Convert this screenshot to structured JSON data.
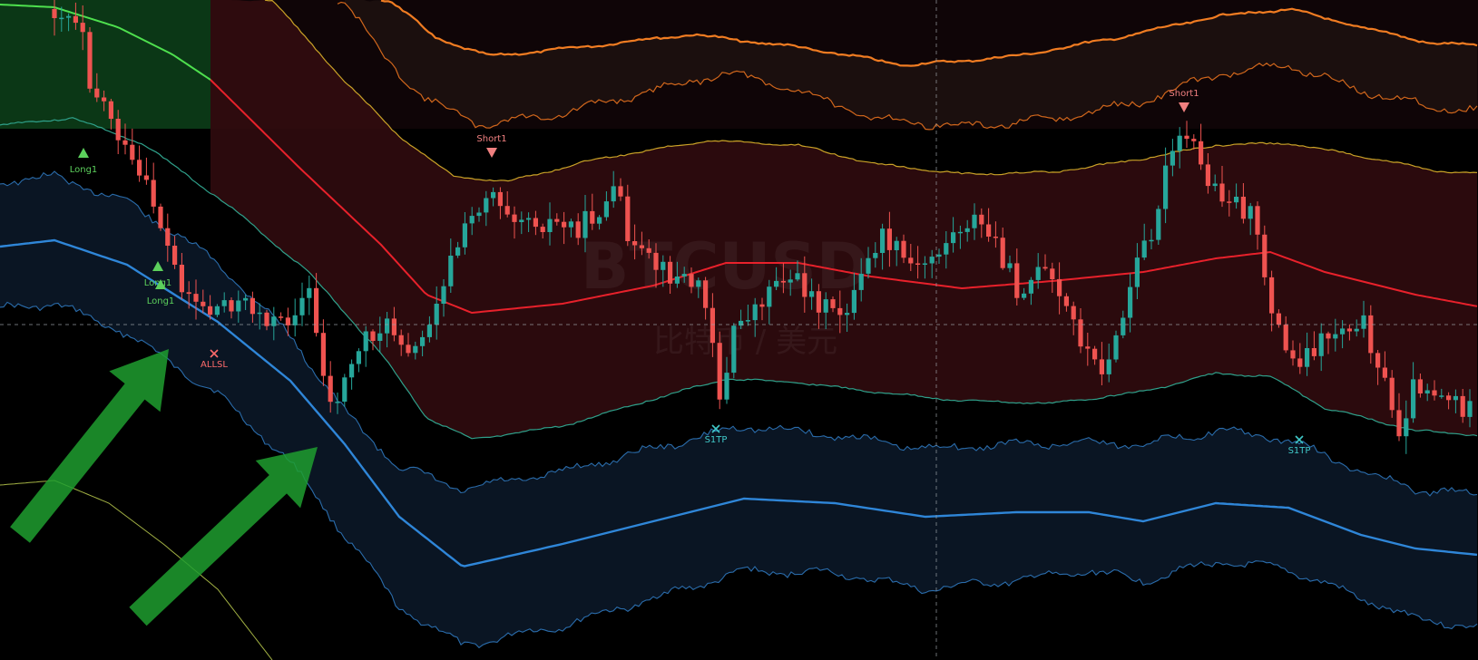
{
  "watermark": {
    "symbol": "BTCUSD",
    "description": "比特币 / 美元"
  },
  "colors": {
    "background": "#000000",
    "candle_up": "#26a69a",
    "candle_down": "#ef5350",
    "long_zone": "#0b3a18",
    "short_zone": "#2a0b0f",
    "band_orange_outer": "#f07c22",
    "band_orange_inner": "#d0661c",
    "band_yellow": "#c9a227",
    "band_red_mid": "#e8212b",
    "band_teal": "#2fa08a",
    "band_blue_inner": "#2f7fc8",
    "band_blue_mid": "#2f86d8",
    "band_blue_outer": "#2a6cab",
    "band_green_top": "#4ee04e",
    "band_yellow_low": "#a3b244",
    "crosshair": "#9aa0a6",
    "signal_long": "#5cd05c",
    "signal_short": "#f08080",
    "signal_exit": "#40c8c8",
    "signal_all": "#ff6b6b",
    "arrow": "#1f9d2f"
  },
  "signals": [
    {
      "type": "long",
      "label": "Long1"
    },
    {
      "type": "long",
      "label": "Long1"
    },
    {
      "type": "long",
      "label": "Long1"
    },
    {
      "type": "short",
      "label": "Short1"
    },
    {
      "type": "short",
      "label": "Short1"
    },
    {
      "type": "exit",
      "label": "S1TP"
    },
    {
      "type": "exit",
      "label": "S1TP"
    },
    {
      "type": "exit_all",
      "label": "ALLSL"
    }
  ],
  "chart_data": {
    "type": "line",
    "symbol": "BTCUSD",
    "bar_count": 200,
    "axes_visible": false,
    "grid": false,
    "crosshair": true
  }
}
